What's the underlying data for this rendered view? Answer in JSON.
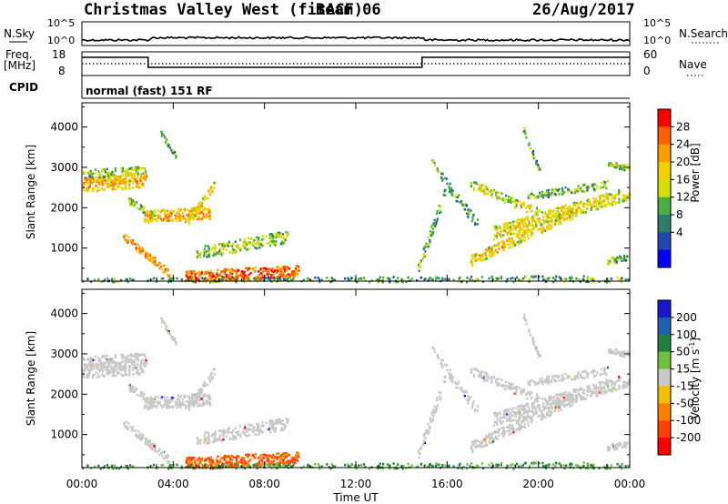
{
  "header": {
    "station": "Christmas Valley West (fitACF)",
    "beam": "Beam 06",
    "date": "26/Aug/2017"
  },
  "noise_panel": {
    "left_label": "N.Sky",
    "right_label": "N.Search",
    "left_ticks": [
      "10^5",
      "10^0"
    ],
    "right_ticks": [
      "10^5",
      "10^0"
    ]
  },
  "freq_panel": {
    "left_label_1": "Freq.",
    "left_label_2": "[MHz]",
    "right_label": "Nave",
    "left_ticks": [
      "18",
      "8"
    ],
    "right_ticks": [
      "60",
      "0"
    ]
  },
  "cpid_panel": {
    "label": "CPID",
    "mode": "normal (fast) 151 RF"
  },
  "chart_data": [
    {
      "type": "heatmap",
      "name": "power",
      "ylabel": "Slant Range [km]",
      "y_ticks": [
        1000,
        2000,
        3000,
        4000
      ],
      "ylim": [
        180,
        4600
      ],
      "colorbar_label": "Power [dB]",
      "colorbar_ticks": [
        "28",
        "24",
        "20",
        "16",
        "12",
        "8",
        "4"
      ],
      "colorbar_colors": [
        "#ff0000",
        "#ff6000",
        "#ff9a00",
        "#f2d000",
        "#d4e000",
        "#48b040",
        "#2e7d6a",
        "#2048b0",
        "#0000ff"
      ]
    },
    {
      "type": "heatmap",
      "name": "velocity",
      "ylabel": "Slant Range [km]",
      "y_ticks": [
        1000,
        2000,
        3000,
        4000
      ],
      "ylim": [
        180,
        4600
      ],
      "colorbar_label": "Velocity [m s^-1]",
      "colorbar_ticks": [
        "200",
        "100",
        "50",
        "15",
        "-15",
        "-50",
        "-100",
        "-200"
      ],
      "colorbar_colors": [
        "#1818c8",
        "#2060b0",
        "#208040",
        "#70c040",
        "#c8c8c8",
        "#f0c000",
        "#ff8000",
        "#ff4000",
        "#ff0000"
      ]
    }
  ],
  "time_axis": {
    "label": "Time UT",
    "ticks": [
      "00:00",
      "04:00",
      "08:00",
      "12:00",
      "16:00",
      "20:00",
      "00:00"
    ]
  }
}
